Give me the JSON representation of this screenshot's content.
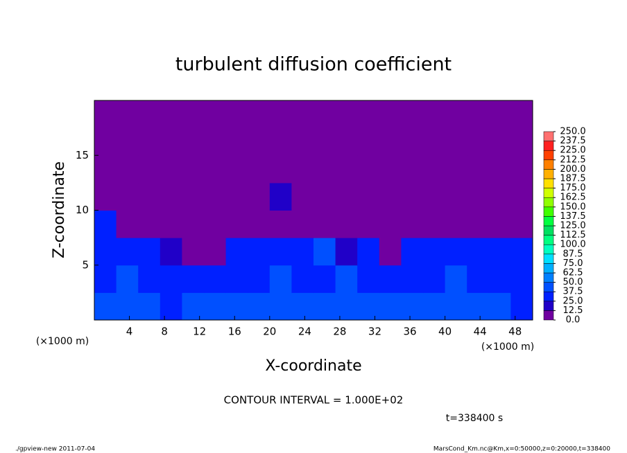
{
  "chart_data": {
    "type": "heatmap",
    "title": "turbulent diffusion coefficient",
    "xlabel": "X-coordinate",
    "ylabel": "Z-coordinate",
    "x_unit": "(×1000 m)",
    "y_unit": "(×1000 m)",
    "annotation": "CONTOUR INTERVAL = 1.000E+02",
    "time_label": "t=338400 s",
    "footer_left": "./gpview-new   2011-07-04",
    "footer_right": "MarsCond_Km.nc@Km,x=0:50000,z=0:20000,t=338400",
    "xlim": [
      0,
      50
    ],
    "ylim": [
      0,
      20
    ],
    "xticks": [
      4,
      8,
      12,
      16,
      20,
      24,
      28,
      32,
      36,
      40,
      44,
      48
    ],
    "yticks": [
      5,
      10,
      15
    ],
    "x_edges": [
      0,
      2.5,
      5,
      7.5,
      10,
      12.5,
      15,
      17.5,
      20,
      22.5,
      25,
      27.5,
      30,
      32.5,
      35,
      37.5,
      40,
      42.5,
      45,
      47.5,
      50
    ],
    "z_edges": [
      0,
      2.5,
      5,
      7.5,
      10,
      12.5,
      15,
      17.5,
      20
    ],
    "z": [
      [
        45,
        40,
        38,
        35,
        40,
        38,
        42,
        40,
        45,
        40,
        38,
        40,
        45,
        40,
        38,
        40,
        38,
        40,
        38,
        35
      ],
      [
        35,
        38,
        30,
        32,
        30,
        25,
        30,
        35,
        38,
        35,
        30,
        40,
        30,
        35,
        30,
        35,
        38,
        30,
        35,
        30
      ],
      [
        30,
        30,
        25,
        20,
        12,
        12,
        30,
        35,
        35,
        25,
        38,
        20,
        25,
        10,
        30,
        32,
        35,
        30,
        30,
        30
      ],
      [
        25,
        5,
        5,
        0,
        0,
        0,
        5,
        12,
        10,
        5,
        0,
        0,
        0,
        0,
        0,
        0,
        0,
        0,
        0,
        5
      ],
      [
        12,
        5,
        0,
        0,
        5,
        5,
        5,
        12,
        15,
        5,
        0,
        0,
        0,
        0,
        0,
        5,
        5,
        0,
        0,
        0
      ],
      [
        0,
        0,
        0,
        0,
        0,
        5,
        5,
        10,
        5,
        0,
        0,
        0,
        0,
        0,
        0,
        0,
        0,
        0,
        0,
        0
      ],
      [
        0,
        0,
        0,
        0,
        0,
        0,
        0,
        0,
        0,
        0,
        0,
        0,
        0,
        0,
        0,
        0,
        0,
        0,
        0,
        0
      ],
      [
        0,
        0,
        0,
        0,
        0,
        0,
        0,
        0,
        0,
        0,
        0,
        0,
        0,
        0,
        0,
        0,
        0,
        0,
        0,
        0
      ]
    ],
    "colorbar": {
      "ticks": [
        {
          "value": 0,
          "label": "0.0"
        },
        12.5,
        {
          "value": 25,
          "label": "25.0"
        },
        37.5,
        {
          "value": 50,
          "label": "50.0"
        },
        62.5,
        {
          "value": 75,
          "label": "75.0"
        },
        87.5,
        {
          "value": 100,
          "label": "100.0"
        },
        112.5,
        {
          "value": 125,
          "label": "125.0"
        },
        137.5,
        {
          "value": 150,
          "label": "150.0"
        },
        162.5,
        {
          "value": 175,
          "label": "175.0"
        },
        187.5,
        {
          "value": 200,
          "label": "200.0"
        },
        212.5,
        {
          "value": 225,
          "label": "225.0"
        },
        237.5,
        {
          "value": 250,
          "label": "250.0"
        }
      ],
      "colors": [
        "#7000a0",
        "#2000c8",
        "#0020ff",
        "#0050ff",
        "#0080ff",
        "#00b0ff",
        "#00e0ff",
        "#00ffc0",
        "#00ff80",
        "#00e060",
        "#00ff40",
        "#40ff00",
        "#90ff00",
        "#d0ff00",
        "#ffe000",
        "#ffb000",
        "#ff8000",
        "#ff4000",
        "#ff2020",
        "#ff7070"
      ]
    }
  }
}
